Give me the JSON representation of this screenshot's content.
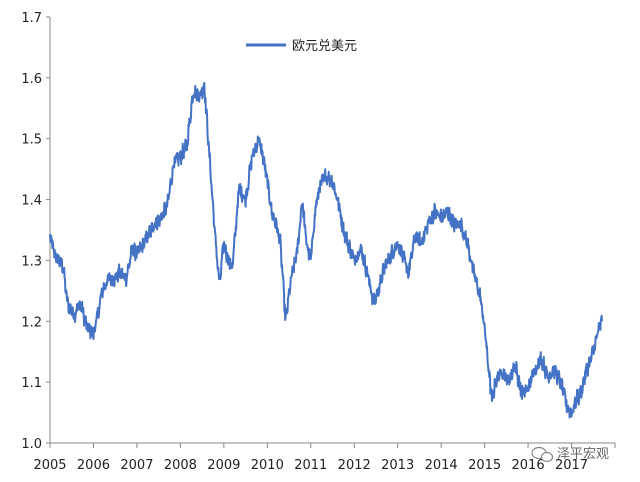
{
  "chart_data": {
    "type": "line",
    "title": "",
    "xlabel": "",
    "ylabel": "",
    "ylim": [
      1.0,
      1.7
    ],
    "xlim": [
      2005,
      2018
    ],
    "yticks": [
      "1.0",
      "1.1",
      "1.2",
      "1.3",
      "1.4",
      "1.5",
      "1.6",
      "1.7"
    ],
    "xticks": [
      "2005",
      "2006",
      "2007",
      "2008",
      "2009",
      "2010",
      "2011",
      "2012",
      "2013",
      "2014",
      "2015",
      "2016",
      "2017"
    ],
    "legend": {
      "position": "top-left",
      "entries": [
        "欧元兑美元"
      ]
    },
    "grid": false,
    "series": [
      {
        "name": "欧元兑美元",
        "color": "#4472c4",
        "x": [
          2005.0,
          2005.1,
          2005.2,
          2005.3,
          2005.4,
          2005.55,
          2005.7,
          2005.85,
          2006.0,
          2006.1,
          2006.2,
          2006.35,
          2006.5,
          2006.6,
          2006.75,
          2006.9,
          2007.0,
          2007.1,
          2007.25,
          2007.4,
          2007.55,
          2007.7,
          2007.85,
          2008.0,
          2008.15,
          2008.3,
          2008.45,
          2008.55,
          2008.65,
          2008.8,
          2008.9,
          2009.0,
          2009.1,
          2009.2,
          2009.35,
          2009.5,
          2009.65,
          2009.8,
          2009.9,
          2010.0,
          2010.1,
          2010.2,
          2010.3,
          2010.42,
          2010.55,
          2010.7,
          2010.8,
          2010.9,
          2011.0,
          2011.1,
          2011.2,
          2011.35,
          2011.5,
          2011.65,
          2011.75,
          2011.9,
          2012.0,
          2012.15,
          2012.3,
          2012.45,
          2012.55,
          2012.7,
          2012.85,
          2013.0,
          2013.15,
          2013.25,
          2013.4,
          2013.55,
          2013.7,
          2013.85,
          2014.0,
          2014.15,
          2014.3,
          2014.45,
          2014.6,
          2014.75,
          2014.9,
          2015.0,
          2015.08,
          2015.17,
          2015.25,
          2015.4,
          2015.55,
          2015.7,
          2015.85,
          2016.0,
          2016.15,
          2016.3,
          2016.45,
          2016.6,
          2016.75,
          2016.9,
          2017.0,
          2017.1,
          2017.2,
          2017.35,
          2017.5,
          2017.6,
          2017.7
        ],
        "values": [
          1.34,
          1.31,
          1.3,
          1.29,
          1.23,
          1.21,
          1.23,
          1.19,
          1.18,
          1.21,
          1.25,
          1.27,
          1.27,
          1.28,
          1.27,
          1.32,
          1.31,
          1.32,
          1.34,
          1.36,
          1.37,
          1.39,
          1.46,
          1.47,
          1.49,
          1.58,
          1.57,
          1.59,
          1.49,
          1.34,
          1.26,
          1.33,
          1.3,
          1.29,
          1.42,
          1.4,
          1.47,
          1.5,
          1.47,
          1.43,
          1.38,
          1.36,
          1.33,
          1.2,
          1.27,
          1.32,
          1.4,
          1.33,
          1.3,
          1.38,
          1.42,
          1.44,
          1.43,
          1.39,
          1.35,
          1.32,
          1.3,
          1.32,
          1.28,
          1.23,
          1.25,
          1.29,
          1.31,
          1.33,
          1.3,
          1.28,
          1.34,
          1.33,
          1.36,
          1.38,
          1.37,
          1.38,
          1.36,
          1.36,
          1.33,
          1.28,
          1.24,
          1.19,
          1.13,
          1.07,
          1.1,
          1.12,
          1.1,
          1.13,
          1.08,
          1.09,
          1.12,
          1.14,
          1.11,
          1.12,
          1.1,
          1.06,
          1.05,
          1.07,
          1.08,
          1.12,
          1.15,
          1.18,
          1.2
        ]
      }
    ]
  },
  "watermark": {
    "text": "泽平宏观"
  }
}
